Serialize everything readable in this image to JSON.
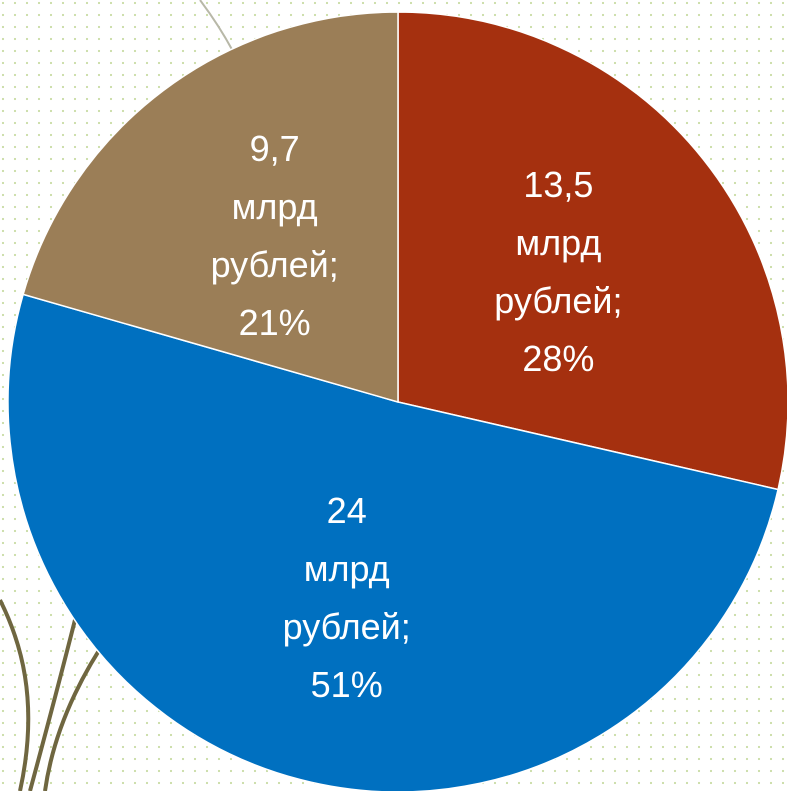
{
  "chart_data": {
    "type": "pie",
    "values": [
      13.5,
      24,
      9.7
    ],
    "value_labels": [
      "13,5",
      "24",
      "9,7"
    ],
    "unit_lines": [
      "млрд",
      "рублей;"
    ],
    "percents": [
      28,
      51,
      21
    ],
    "percent_labels": [
      "28%",
      "51%",
      "21%"
    ],
    "colors": [
      "#a5300f",
      "#0070c0",
      "#9b7e57"
    ]
  }
}
